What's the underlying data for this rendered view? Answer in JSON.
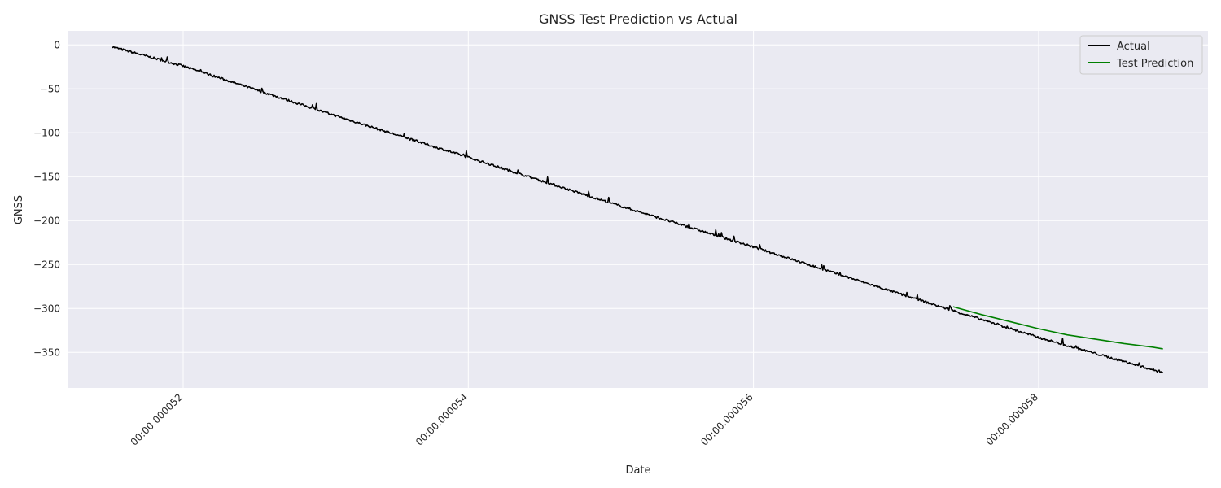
{
  "chart_data": {
    "type": "line",
    "title": "GNSS Test Prediction vs Actual",
    "xlabel": "Date",
    "ylabel": "GNSS",
    "x_unit": "time (HH:MM:SS.ssssss)",
    "xlim": [
      "00:00.000051195",
      "00:00.000059188"
    ],
    "ylim": [
      -390.5,
      16
    ],
    "x_ticks": [
      {
        "value": "00:00.000052",
        "label": "00:00.000052"
      },
      {
        "value": "00:00.000054",
        "label": "00:00.000054"
      },
      {
        "value": "00:00.000056",
        "label": "00:00.000056"
      },
      {
        "value": "00:00.000058",
        "label": "00:00.000058"
      }
    ],
    "y_ticks": [
      {
        "value": 0,
        "label": "0"
      },
      {
        "value": -50,
        "label": "−50"
      },
      {
        "value": -100,
        "label": "−100"
      },
      {
        "value": -150,
        "label": "−150"
      },
      {
        "value": -200,
        "label": "−200"
      },
      {
        "value": -250,
        "label": "−250"
      },
      {
        "value": -300,
        "label": "−300"
      },
      {
        "value": -350,
        "label": "−350"
      }
    ],
    "grid": true,
    "legend_position": "top-right",
    "series": [
      {
        "name": "Actual",
        "color": "#000000",
        "x": [
          "00:00.0000515",
          "00:00.000052",
          "00:00.000053",
          "00:00.000054",
          "00:00.000055",
          "00:00.000056",
          "00:00.000057",
          "00:00.000058",
          "00:00.000058872"
        ],
        "y": [
          -2,
          -24,
          -77,
          -128,
          -180,
          -230,
          -282,
          -333,
          -373
        ]
      },
      {
        "name": "Test Prediction",
        "color": "#008000",
        "x": [
          "00:00.0000574",
          "00:00.0000576",
          "00:00.0000578",
          "00:00.000058",
          "00:00.0000582",
          "00:00.0000584",
          "00:00.0000586",
          "00:00.0000588",
          "00:00.000058872"
        ],
        "y": [
          -298,
          -307,
          -315,
          -323,
          -330,
          -335,
          -340,
          -344,
          -346
        ]
      }
    ]
  }
}
